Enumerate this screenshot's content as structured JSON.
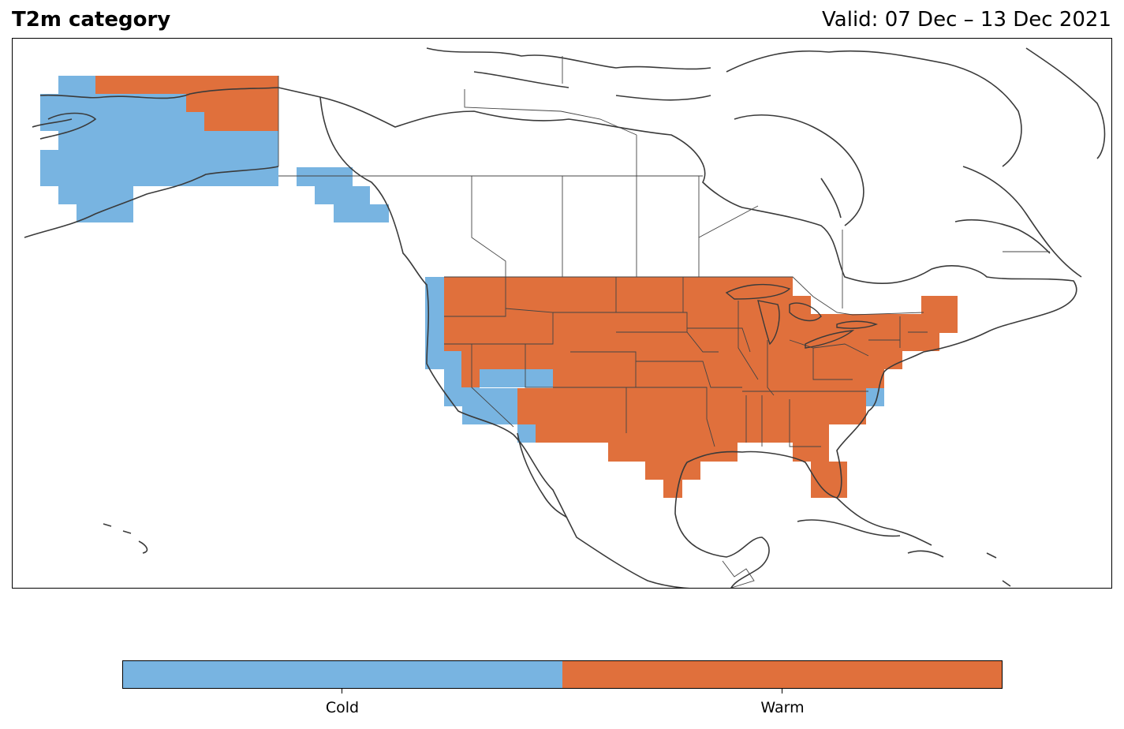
{
  "title": "T2m category",
  "valid": "Valid: 07 Dec – 13 Dec 2021",
  "colors": {
    "cold": "#78b4e1",
    "warm": "#e0703c",
    "coast": "#3a3a3a",
    "border": "#444444"
  },
  "legend": {
    "categories": [
      "Cold",
      "Warm"
    ]
  }
}
